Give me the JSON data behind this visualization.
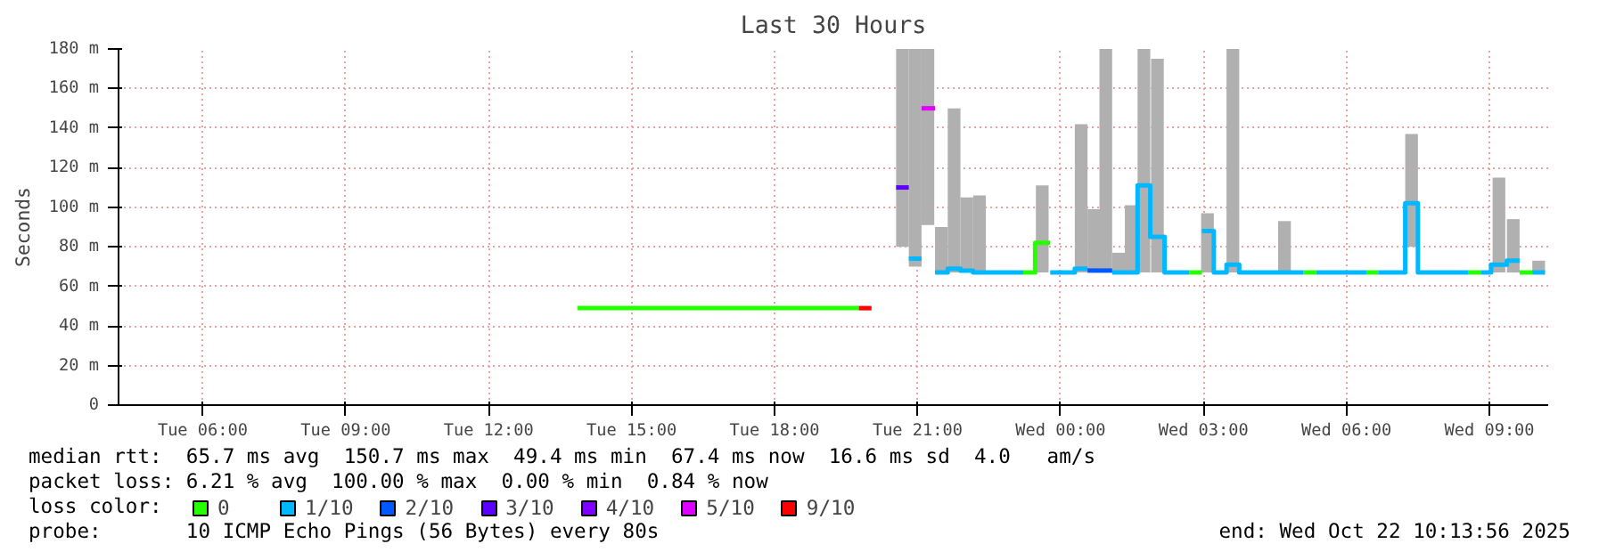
{
  "chart_data": {
    "type": "line",
    "title": "Last 30 Hours",
    "ylabel": "Seconds",
    "legend_title": "loss color:",
    "series": [
      {
        "type": "bar",
        "color": "#b0b0b0",
        "x": [
          "2025-10-21T20:41",
          "2025-10-21T20:57",
          "2025-10-21T21:13",
          "2025-10-21T21:30",
          "2025-10-21T21:46",
          "2025-10-21T22:02",
          "2025-10-21T22:18",
          "2025-10-21T23:37",
          "2025-10-22T00:26",
          "2025-10-22T00:42",
          "2025-10-22T00:57",
          "2025-10-22T01:13",
          "2025-10-22T01:29",
          "2025-10-22T01:45",
          "2025-10-22T02:02",
          "2025-10-22T03:05",
          "2025-10-22T03:37",
          "2025-10-22T04:42",
          "2025-10-22T07:22",
          "2025-10-22T09:12",
          "2025-10-22T09:30",
          "2025-10-22T10:02"
        ],
        "base": [
          80,
          70,
          91,
          67,
          67,
          67,
          67,
          67,
          67,
          67,
          67,
          67,
          67,
          67,
          67,
          67,
          67,
          67,
          80,
          67,
          67,
          67
        ],
        "values": [
          100,
          110,
          89,
          23,
          83,
          38,
          39,
          44,
          75,
          32,
          113,
          10,
          34,
          113,
          108,
          30,
          113,
          26,
          57,
          48,
          27,
          6
        ]
      },
      {
        "name": "0",
        "color": "#26ff00",
        "x": [
          "2025-10-21T13:52",
          "2025-10-21T19:46",
          null,
          "2025-10-21T23:13",
          "2025-10-21T23:28",
          "2025-10-21T23:28",
          "2025-10-21T23:47",
          null,
          "2025-10-22T02:42",
          "2025-10-22T02:58",
          null,
          "2025-10-22T05:06",
          "2025-10-22T05:22",
          null,
          "2025-10-22T06:25",
          "2025-10-22T06:40",
          null,
          "2025-10-22T08:33",
          "2025-10-22T08:49",
          null,
          "2025-10-22T09:38",
          "2025-10-22T09:54"
        ],
        "values": [
          49,
          49,
          null,
          67,
          67,
          82,
          82,
          null,
          67,
          67,
          null,
          67,
          67,
          null,
          67,
          67,
          null,
          67,
          67,
          null,
          67,
          67
        ]
      },
      {
        "name": "1/10",
        "color": "#00b8ff",
        "x": [
          "2025-10-21T20:49",
          "2025-10-21T21:05",
          null,
          "2025-10-21T21:22",
          "2025-10-21T21:38",
          "2025-10-21T21:38",
          "2025-10-21T21:54",
          "2025-10-21T21:54",
          "2025-10-21T22:10",
          "2025-10-21T22:10",
          "2025-10-21T23:13",
          null,
          "2025-10-21T23:47",
          "2025-10-22T00:18",
          "2025-10-22T00:18",
          "2025-10-22T00:34",
          null,
          "2025-10-22T01:05",
          "2025-10-22T01:37",
          "2025-10-22T01:37",
          "2025-10-22T01:53",
          "2025-10-22T01:53",
          "2025-10-22T02:11",
          "2025-10-22T02:11",
          "2025-10-22T02:42",
          null,
          "2025-10-22T02:58",
          "2025-10-22T03:13",
          "2025-10-22T03:13",
          "2025-10-22T03:29",
          "2025-10-22T03:29",
          "2025-10-22T03:45",
          "2025-10-22T03:45",
          "2025-10-22T05:06",
          null,
          "2025-10-22T05:22",
          "2025-10-22T06:25",
          null,
          "2025-10-22T06:40",
          "2025-10-22T07:14",
          "2025-10-22T07:14",
          "2025-10-22T07:30",
          "2025-10-22T07:30",
          "2025-10-22T08:33",
          null,
          "2025-10-22T08:49",
          "2025-10-22T09:02",
          "2025-10-22T09:02",
          "2025-10-22T09:22",
          "2025-10-22T09:22",
          "2025-10-22T09:38",
          null,
          "2025-10-22T09:54",
          "2025-10-22T10:10"
        ],
        "values": [
          74,
          74,
          null,
          67,
          67,
          69,
          69,
          68,
          68,
          67,
          67,
          null,
          67,
          67,
          69,
          69,
          null,
          67,
          67,
          111,
          111,
          85,
          85,
          67,
          67,
          null,
          88,
          88,
          67,
          67,
          71,
          71,
          67,
          67,
          null,
          67,
          67,
          null,
          67,
          67,
          102,
          102,
          67,
          67,
          null,
          67,
          67,
          71,
          71,
          73,
          73,
          null,
          67,
          67
        ]
      },
      {
        "name": "2/10",
        "color": "#0059ff",
        "x": [
          "2025-10-22T00:34",
          "2025-10-22T01:05"
        ],
        "values": [
          68,
          68
        ]
      },
      {
        "name": "3/10",
        "color": "#5e00ff",
        "x": [
          "2025-10-21T20:33",
          "2025-10-21T20:49"
        ],
        "values": [
          110,
          110
        ]
      },
      {
        "name": "4/10",
        "color": "#7e00ff"
      },
      {
        "name": "5/10",
        "color": "#dd00ff",
        "x": [
          "2025-10-21T21:05",
          "2025-10-21T21:22"
        ],
        "values": [
          150,
          150
        ]
      },
      {
        "name": "9/10",
        "color": "#ff0000",
        "x": [
          "2025-10-21T19:46",
          "2025-10-21T20:02"
        ],
        "values": [
          49,
          49
        ]
      }
    ],
    "xlim": [
      "2025-10-21T04:14",
      "2025-10-22T10:14"
    ],
    "xticks": [
      {
        "value": "2025-10-21T06:00",
        "label": "Tue 06:00"
      },
      {
        "value": "2025-10-21T09:00",
        "label": "Tue 09:00"
      },
      {
        "value": "2025-10-21T12:00",
        "label": "Tue 12:00"
      },
      {
        "value": "2025-10-21T15:00",
        "label": "Tue 15:00"
      },
      {
        "value": "2025-10-21T18:00",
        "label": "Tue 18:00"
      },
      {
        "value": "2025-10-21T21:00",
        "label": "Tue 21:00"
      },
      {
        "value": "2025-10-22T00:00",
        "label": "Wed 00:00"
      },
      {
        "value": "2025-10-22T03:00",
        "label": "Wed 03:00"
      },
      {
        "value": "2025-10-22T06:00",
        "label": "Wed 06:00"
      },
      {
        "value": "2025-10-22T09:00",
        "label": "Wed 09:00"
      }
    ],
    "ylim": [
      0,
      180
    ],
    "yticks": [
      0,
      {
        "value": 20,
        "label": "20 m"
      },
      {
        "value": 40,
        "label": "40 m"
      },
      {
        "value": 60,
        "label": "60 m"
      },
      {
        "value": 80,
        "label": "80 m"
      },
      {
        "value": 100,
        "label": "100 m"
      },
      {
        "value": 120,
        "label": "120 m"
      },
      {
        "value": 140,
        "label": "140 m"
      },
      {
        "value": 160,
        "label": "160 m"
      },
      {
        "value": 180,
        "label": "180 m"
      }
    ],
    "grid": true,
    "legend": "bottom",
    "annotations": [
      "median rtt:  65.7 ms avg  150.7 ms max  49.4 ms min  67.4 ms now  16.6 ms sd  4.0   am/s",
      "packet loss: 6.21 % avg  100.00 % max  0.00 % min  0.84 % now",
      "probe:       10 ICMP Echo Pings (56 Bytes) every 80s",
      "end: Wed Oct 22 10:13:56 2025"
    ]
  }
}
